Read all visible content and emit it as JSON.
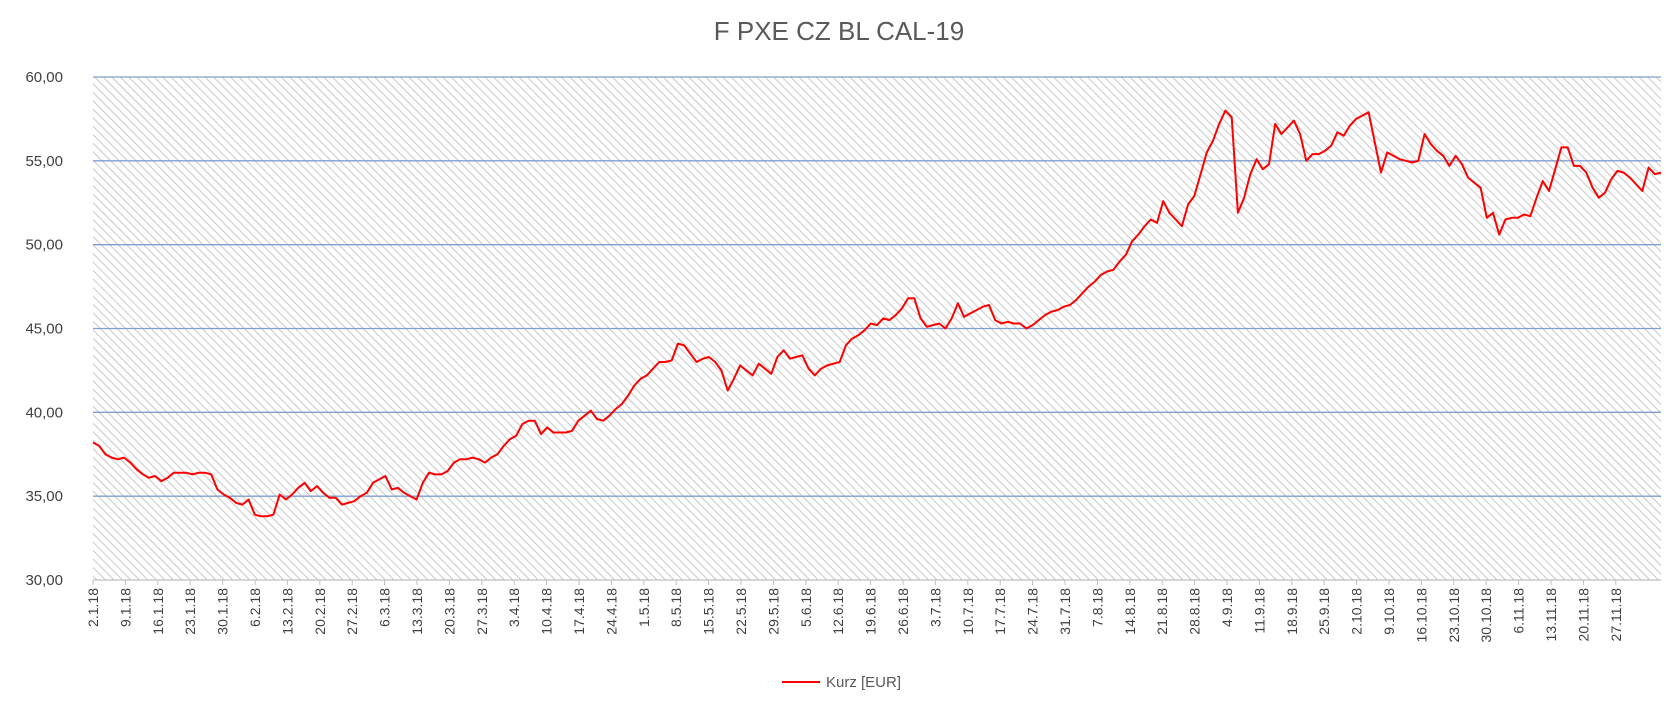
{
  "chart_data": {
    "type": "line",
    "title": "F PXE CZ BL CAL-19",
    "xlabel": "",
    "ylabel": "",
    "ylim": [
      30,
      60
    ],
    "yticks": [
      "30,00",
      "35,00",
      "40,00",
      "45,00",
      "50,00",
      "55,00",
      "60,00"
    ],
    "grid": true,
    "legend_position": "bottom",
    "x_tick_labels": [
      "2.1.18",
      "9.1.18",
      "16.1.18",
      "23.1.18",
      "30.1.18",
      "6.2.18",
      "13.2.18",
      "20.2.18",
      "27.2.18",
      "6.3.18",
      "13.3.18",
      "20.3.18",
      "27.3.18",
      "3.4.18",
      "10.4.18",
      "17.4.18",
      "24.4.18",
      "1.5.18",
      "8.5.18",
      "15.5.18",
      "22.5.18",
      "29.5.18",
      "5.6.18",
      "12.6.18",
      "19.6.18",
      "26.6.18",
      "3.7.18",
      "10.7.18",
      "17.7.18",
      "24.7.18",
      "31.7.18",
      "7.8.18",
      "14.8.18",
      "21.8.18",
      "28.8.18",
      "4.9.18",
      "11.9.18",
      "18.9.18",
      "25.9.18",
      "2.10.18",
      "9.10.18",
      "16.10.18",
      "23.10.18",
      "30.10.18",
      "6.11.18",
      "13.11.18",
      "20.11.18",
      "27.11.18"
    ],
    "series": [
      {
        "name": "Kurz [EUR]",
        "color": "#ff0000",
        "values": [
          38.2,
          38.0,
          37.5,
          37.3,
          37.2,
          37.3,
          37.0,
          36.6,
          36.3,
          36.1,
          36.2,
          35.9,
          36.1,
          36.4,
          36.4,
          36.4,
          36.3,
          36.4,
          36.4,
          36.3,
          35.4,
          35.1,
          34.9,
          34.6,
          34.5,
          34.8,
          33.9,
          33.8,
          33.8,
          33.9,
          35.1,
          34.8,
          35.1,
          35.5,
          35.8,
          35.3,
          35.6,
          35.2,
          34.9,
          34.9,
          34.5,
          34.6,
          34.7,
          35.0,
          35.2,
          35.8,
          36.0,
          36.2,
          35.4,
          35.5,
          35.2,
          35.0,
          34.8,
          35.8,
          36.4,
          36.3,
          36.3,
          36.5,
          37.0,
          37.2,
          37.2,
          37.3,
          37.2,
          37.0,
          37.3,
          37.5,
          38.0,
          38.4,
          38.6,
          39.3,
          39.5,
          39.5,
          38.7,
          39.1,
          38.8,
          38.8,
          38.8,
          38.9,
          39.5,
          39.8,
          40.1,
          39.6,
          39.5,
          39.8,
          40.2,
          40.5,
          41.0,
          41.6,
          42.0,
          42.2,
          42.6,
          43.0,
          43.0,
          43.1,
          44.1,
          44.0,
          43.5,
          43.0,
          43.2,
          43.3,
          43.0,
          42.5,
          41.3,
          42.0,
          42.8,
          42.5,
          42.2,
          42.9,
          42.6,
          42.3,
          43.3,
          43.7,
          43.2,
          43.3,
          43.4,
          42.6,
          42.2,
          42.6,
          42.8,
          42.9,
          43.0,
          44.0,
          44.4,
          44.6,
          44.9,
          45.3,
          45.2,
          45.6,
          45.5,
          45.8,
          46.2,
          46.8,
          46.8,
          45.6,
          45.1,
          45.2,
          45.3,
          45.0,
          45.6,
          46.5,
          45.7,
          45.9,
          46.1,
          46.3,
          46.4,
          45.5,
          45.3,
          45.4,
          45.3,
          45.3,
          45.0,
          45.2,
          45.5,
          45.8,
          46.0,
          46.1,
          46.3,
          46.4,
          46.7,
          47.1,
          47.5,
          47.8,
          48.2,
          48.4,
          48.5,
          49.0,
          49.4,
          50.2,
          50.6,
          51.1,
          51.5,
          51.3,
          52.6,
          51.9,
          51.5,
          51.1,
          52.4,
          52.9,
          54.2,
          55.5,
          56.2,
          57.2,
          58.0,
          57.6,
          51.9,
          52.8,
          54.2,
          55.1,
          54.5,
          54.8,
          57.2,
          56.6,
          57.0,
          57.4,
          56.6,
          55.0,
          55.4,
          55.4,
          55.6,
          55.9,
          56.7,
          56.5,
          57.1,
          57.5,
          57.7,
          57.9,
          56.1,
          54.3,
          55.5,
          55.3,
          55.1,
          55.0,
          54.9,
          55.0,
          56.6,
          56.0,
          55.6,
          55.3,
          54.7,
          55.3,
          54.8,
          54.0,
          53.7,
          53.4,
          51.6,
          51.9,
          50.6,
          51.5,
          51.6,
          51.6,
          51.8,
          51.7,
          52.8,
          53.8,
          53.2,
          54.5,
          55.8,
          55.8,
          54.7,
          54.7,
          54.3,
          53.4,
          52.8,
          53.1,
          53.9,
          54.4,
          54.3,
          54.0,
          53.6,
          53.2,
          54.6,
          54.2,
          54.3
        ]
      }
    ]
  }
}
